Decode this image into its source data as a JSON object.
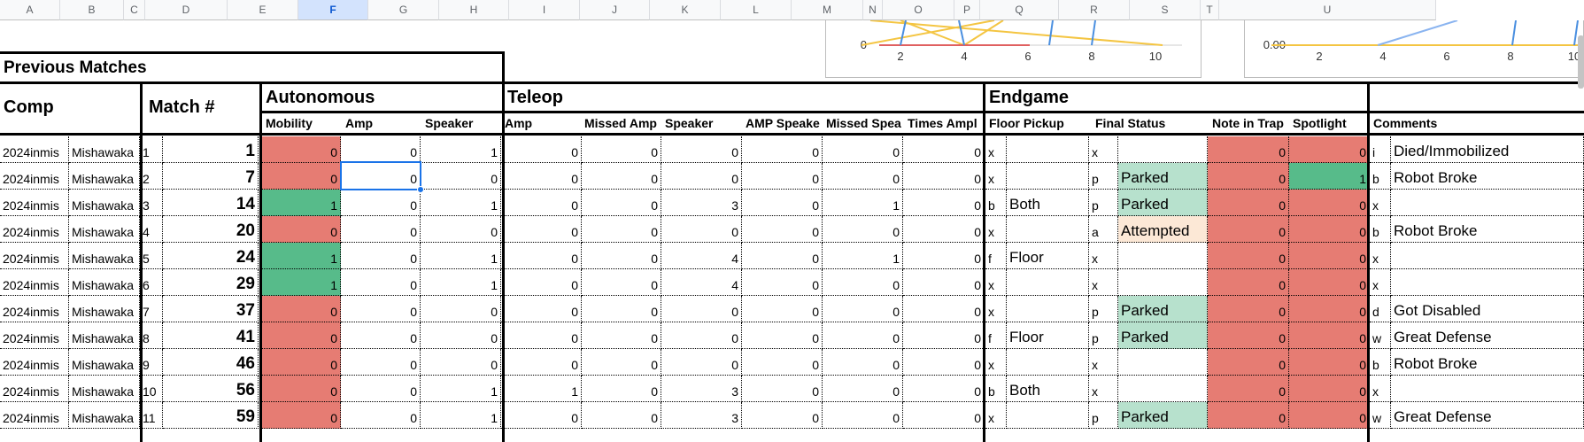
{
  "columns": [
    "A",
    "B",
    "C",
    "D",
    "E",
    "F",
    "G",
    "H",
    "I",
    "J",
    "K",
    "L",
    "M",
    "N",
    "O",
    "P",
    "Q",
    "R",
    "S",
    "T",
    "U"
  ],
  "selected_column": "F",
  "sections": {
    "previous_matches": "Previous Matches",
    "comp": "Comp",
    "match_num": "Match #",
    "autonomous": "Autonomous",
    "teleop": "Teleop",
    "endgame": "Endgame"
  },
  "subheaders": {
    "mobility": "Mobility",
    "auto_amp": "Amp",
    "auto_speaker": "Speaker",
    "tele_amp": "Amp",
    "missed_amp": "Missed Amp",
    "tele_speaker": "Speaker",
    "amp_speaker": "AMP Speake",
    "missed_speaker": "Missed Spea",
    "times_amp": "Times Ampl",
    "floor_pickup": "Floor Pickup",
    "final_status": "Final Status",
    "note_in_trap": "Note in Trap",
    "spotlight": "Spotlight",
    "comments": "Comments"
  },
  "rows": [
    {
      "comp": "2024inmis",
      "event": "Mishawaka",
      "idx": "1",
      "match": "1",
      "mobility": "0",
      "a_amp": "0",
      "a_spk": "1",
      "t_amp": "0",
      "m_amp": "0",
      "t_spk": "0",
      "amp_spk": "0",
      "m_spk": "0",
      "times_amp": "0",
      "fp_code": "x",
      "fp": "",
      "fs_code": "x",
      "fs": "",
      "trap": "0",
      "spot": "0",
      "c_code": "i",
      "comment": "Died/Immobilized"
    },
    {
      "comp": "2024inmis",
      "event": "Mishawaka",
      "idx": "2",
      "match": "7",
      "mobility": "0",
      "a_amp": "0",
      "a_spk": "0",
      "t_amp": "0",
      "m_amp": "0",
      "t_spk": "0",
      "amp_spk": "0",
      "m_spk": "0",
      "times_amp": "0",
      "fp_code": "x",
      "fp": "",
      "fs_code": "p",
      "fs": "Parked",
      "trap": "0",
      "spot": "1",
      "c_code": "b",
      "comment": "Robot Broke"
    },
    {
      "comp": "2024inmis",
      "event": "Mishawaka",
      "idx": "3",
      "match": "14",
      "mobility": "1",
      "a_amp": "0",
      "a_spk": "1",
      "t_amp": "0",
      "m_amp": "0",
      "t_spk": "3",
      "amp_spk": "0",
      "m_spk": "1",
      "times_amp": "0",
      "fp_code": "b",
      "fp": "Both",
      "fs_code": "p",
      "fs": "Parked",
      "trap": "0",
      "spot": "0",
      "c_code": "x",
      "comment": ""
    },
    {
      "comp": "2024inmis",
      "event": "Mishawaka",
      "idx": "4",
      "match": "20",
      "mobility": "0",
      "a_amp": "0",
      "a_spk": "0",
      "t_amp": "0",
      "m_amp": "0",
      "t_spk": "0",
      "amp_spk": "0",
      "m_spk": "0",
      "times_amp": "0",
      "fp_code": "x",
      "fp": "",
      "fs_code": "a",
      "fs": "Attempted",
      "trap": "0",
      "spot": "0",
      "c_code": "b",
      "comment": "Robot Broke"
    },
    {
      "comp": "2024inmis",
      "event": "Mishawaka",
      "idx": "5",
      "match": "24",
      "mobility": "1",
      "a_amp": "0",
      "a_spk": "1",
      "t_amp": "0",
      "m_amp": "0",
      "t_spk": "4",
      "amp_spk": "0",
      "m_spk": "1",
      "times_amp": "0",
      "fp_code": "f",
      "fp": "Floor",
      "fs_code": "x",
      "fs": "",
      "trap": "0",
      "spot": "0",
      "c_code": "x",
      "comment": ""
    },
    {
      "comp": "2024inmis",
      "event": "Mishawaka",
      "idx": "6",
      "match": "29",
      "mobility": "1",
      "a_amp": "0",
      "a_spk": "1",
      "t_amp": "0",
      "m_amp": "0",
      "t_spk": "4",
      "amp_spk": "0",
      "m_spk": "0",
      "times_amp": "0",
      "fp_code": "x",
      "fp": "",
      "fs_code": "x",
      "fs": "",
      "trap": "0",
      "spot": "0",
      "c_code": "x",
      "comment": ""
    },
    {
      "comp": "2024inmis",
      "event": "Mishawaka",
      "idx": "7",
      "match": "37",
      "mobility": "0",
      "a_amp": "0",
      "a_spk": "0",
      "t_amp": "0",
      "m_amp": "0",
      "t_spk": "0",
      "amp_spk": "0",
      "m_spk": "0",
      "times_amp": "0",
      "fp_code": "x",
      "fp": "",
      "fs_code": "p",
      "fs": "Parked",
      "trap": "0",
      "spot": "0",
      "c_code": "d",
      "comment": "Got Disabled"
    },
    {
      "comp": "2024inmis",
      "event": "Mishawaka",
      "idx": "8",
      "match": "41",
      "mobility": "0",
      "a_amp": "0",
      "a_spk": "0",
      "t_amp": "0",
      "m_amp": "0",
      "t_spk": "0",
      "amp_spk": "0",
      "m_spk": "0",
      "times_amp": "0",
      "fp_code": "f",
      "fp": "Floor",
      "fs_code": "p",
      "fs": "Parked",
      "trap": "0",
      "spot": "0",
      "c_code": "w",
      "comment": "Great Defense"
    },
    {
      "comp": "2024inmis",
      "event": "Mishawaka",
      "idx": "9",
      "match": "46",
      "mobility": "0",
      "a_amp": "0",
      "a_spk": "0",
      "t_amp": "0",
      "m_amp": "0",
      "t_spk": "0",
      "amp_spk": "0",
      "m_spk": "0",
      "times_amp": "0",
      "fp_code": "x",
      "fp": "",
      "fs_code": "x",
      "fs": "",
      "trap": "0",
      "spot": "0",
      "c_code": "b",
      "comment": "Robot Broke"
    },
    {
      "comp": "2024inmis",
      "event": "Mishawaka",
      "idx": "10",
      "match": "56",
      "mobility": "0",
      "a_amp": "0",
      "a_spk": "1",
      "t_amp": "1",
      "m_amp": "0",
      "t_spk": "3",
      "amp_spk": "0",
      "m_spk": "0",
      "times_amp": "0",
      "fp_code": "b",
      "fp": "Both",
      "fs_code": "x",
      "fs": "",
      "trap": "0",
      "spot": "0",
      "c_code": "x",
      "comment": ""
    },
    {
      "comp": "2024inmis",
      "event": "Mishawaka",
      "idx": "11",
      "match": "59",
      "mobility": "0",
      "a_amp": "0",
      "a_spk": "1",
      "t_amp": "0",
      "m_amp": "0",
      "t_spk": "3",
      "amp_spk": "0",
      "m_spk": "0",
      "times_amp": "0",
      "fp_code": "x",
      "fp": "",
      "fs_code": "p",
      "fs": "Parked",
      "trap": "0",
      "spot": "0",
      "c_code": "w",
      "comment": "Great Defense"
    }
  ],
  "colors": {
    "red": "#e67c73",
    "green": "#57bb8a",
    "light_green": "#b7e1cd",
    "peach": "#fce8d6",
    "selection": "#1a73e8"
  },
  "chart_data": [
    {
      "type": "line",
      "x_ticks": [
        "2",
        "4",
        "6",
        "8",
        "10"
      ],
      "y_ticks": [
        "0"
      ],
      "series": []
    },
    {
      "type": "line",
      "x_ticks": [
        "2",
        "4",
        "6",
        "8",
        "10"
      ],
      "y_ticks": [
        "0.00"
      ],
      "series": []
    }
  ]
}
